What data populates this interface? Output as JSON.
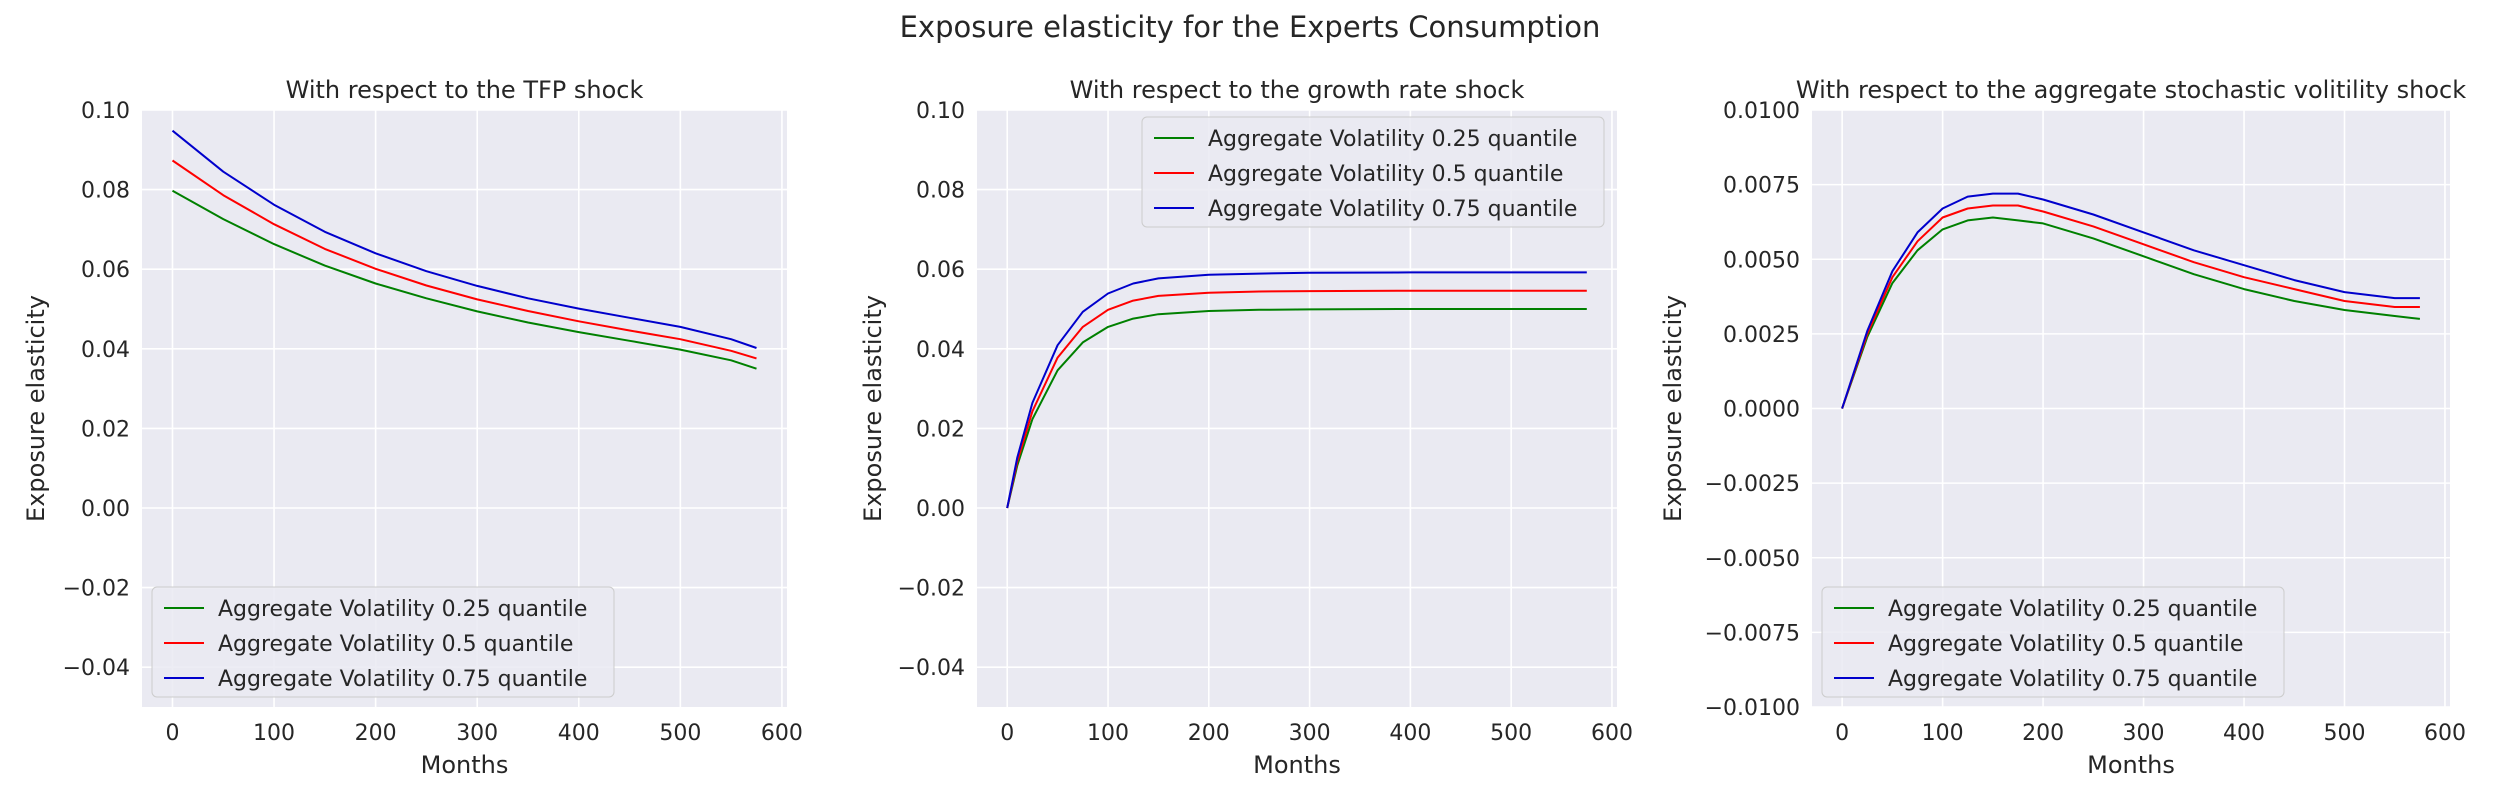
{
  "figure": {
    "title": "Exposure elasticity for the Experts Consumption"
  },
  "colors": {
    "q25": "#008000",
    "q50": "#ff0000",
    "q75": "#0000cc",
    "plot_background": "#eaeaf2",
    "grid": "#ffffff"
  },
  "chart_data": [
    {
      "type": "line",
      "title": "With respect to the TFP shock",
      "xlabel": "Months",
      "ylabel": "Exposure elasticity",
      "xlim": [
        -30,
        605
      ],
      "ylim": [
        -0.05,
        0.1
      ],
      "xticks": [
        0,
        100,
        200,
        300,
        400,
        500,
        600
      ],
      "yticks": [
        -0.04,
        -0.02,
        0.0,
        0.02,
        0.04,
        0.06,
        0.08,
        0.1
      ],
      "ytick_labels": [
        "−0.04",
        "−0.02",
        "0.00",
        "0.02",
        "0.04",
        "0.06",
        "0.08",
        "0.10"
      ],
      "grid": true,
      "legend": "lower-left",
      "x": [
        0,
        50,
        100,
        150,
        200,
        250,
        300,
        350,
        400,
        450,
        500,
        550,
        575
      ],
      "series": [
        {
          "name": "Aggregate Volatility 0.25 quantile",
          "color": "#008000",
          "values": [
            0.0797,
            0.0726,
            0.0663,
            0.0609,
            0.0564,
            0.0527,
            0.0494,
            0.0466,
            0.0442,
            0.042,
            0.0398,
            0.0371,
            0.035
          ]
        },
        {
          "name": "Aggregate Volatility 0.5 quantile",
          "color": "#ff0000",
          "values": [
            0.0873,
            0.0786,
            0.0713,
            0.0651,
            0.0601,
            0.0559,
            0.0524,
            0.0495,
            0.0469,
            0.0446,
            0.0424,
            0.0395,
            0.0376
          ]
        },
        {
          "name": "Aggregate Volatility 0.75 quantile",
          "color": "#0000cc",
          "values": [
            0.0948,
            0.0845,
            0.0762,
            0.0694,
            0.064,
            0.0595,
            0.0558,
            0.0527,
            0.0501,
            0.0478,
            0.0455,
            0.0424,
            0.0402
          ]
        }
      ]
    },
    {
      "type": "line",
      "title": "With respect to the growth rate shock",
      "xlabel": "Months",
      "ylabel": "Exposure elasticity",
      "xlim": [
        -30,
        605
      ],
      "ylim": [
        -0.05,
        0.1
      ],
      "xticks": [
        0,
        100,
        200,
        300,
        400,
        500,
        600
      ],
      "yticks": [
        -0.04,
        -0.02,
        0.0,
        0.02,
        0.04,
        0.06,
        0.08,
        0.1
      ],
      "ytick_labels": [
        "−0.04",
        "−0.02",
        "0.00",
        "0.02",
        "0.04",
        "0.06",
        "0.08",
        "0.10"
      ],
      "grid": true,
      "legend": "upper-right",
      "x": [
        0,
        10,
        25,
        50,
        75,
        100,
        125,
        150,
        200,
        250,
        300,
        400,
        500,
        575
      ],
      "series": [
        {
          "name": "Aggregate Volatility 0.25 quantile",
          "color": "#008000",
          "values": [
            0.0,
            0.0107,
            0.0223,
            0.0346,
            0.0416,
            0.0455,
            0.0476,
            0.0487,
            0.0495,
            0.0498,
            0.0499,
            0.05,
            0.05,
            0.05
          ]
        },
        {
          "name": "Aggregate Volatility 0.5 quantile",
          "color": "#ff0000",
          "values": [
            0.0,
            0.0117,
            0.0243,
            0.0378,
            0.0455,
            0.0498,
            0.0521,
            0.0533,
            0.0541,
            0.0544,
            0.0545,
            0.0546,
            0.0546,
            0.0546
          ]
        },
        {
          "name": "Aggregate Volatility 0.75 quantile",
          "color": "#0000cc",
          "values": [
            0.0,
            0.0127,
            0.0264,
            0.0409,
            0.0493,
            0.0539,
            0.0564,
            0.0577,
            0.0586,
            0.0589,
            0.0591,
            0.0592,
            0.0592,
            0.0592
          ]
        }
      ]
    },
    {
      "type": "line",
      "title": "With respect to the aggregate stochastic volitility shock",
      "xlabel": "Months",
      "ylabel": "Exposure elasticity",
      "xlim": [
        -30,
        605
      ],
      "ylim": [
        -0.01,
        0.01
      ],
      "xticks": [
        0,
        100,
        200,
        300,
        400,
        500,
        600
      ],
      "yticks": [
        -0.01,
        -0.0075,
        -0.005,
        -0.0025,
        0.0,
        0.0025,
        0.005,
        0.0075,
        0.01
      ],
      "ytick_labels": [
        "−0.0100",
        "−0.0075",
        "−0.0050",
        "−0.0025",
        "0.0000",
        "0.0025",
        "0.0050",
        "0.0075",
        "0.0100"
      ],
      "grid": true,
      "legend": "lower-left",
      "x": [
        0,
        25,
        50,
        75,
        100,
        125,
        150,
        175,
        200,
        250,
        300,
        350,
        400,
        450,
        500,
        550,
        575
      ],
      "series": [
        {
          "name": "Aggregate Volatility 0.25 quantile",
          "color": "#008000",
          "values": [
            0.0,
            0.0024,
            0.0042,
            0.0053,
            0.006,
            0.0063,
            0.0064,
            0.0063,
            0.0062,
            0.0057,
            0.0051,
            0.0045,
            0.004,
            0.0036,
            0.0033,
            0.0031,
            0.003
          ]
        },
        {
          "name": "Aggregate Volatility 0.5 quantile",
          "color": "#ff0000",
          "values": [
            0.0,
            0.0025,
            0.0044,
            0.0056,
            0.0064,
            0.0067,
            0.0068,
            0.0068,
            0.0066,
            0.0061,
            0.0055,
            0.0049,
            0.0044,
            0.004,
            0.0036,
            0.0034,
            0.0034
          ]
        },
        {
          "name": "Aggregate Volatility 0.75 quantile",
          "color": "#0000cc",
          "values": [
            0.0,
            0.0026,
            0.0046,
            0.0059,
            0.0067,
            0.0071,
            0.0072,
            0.0072,
            0.007,
            0.0065,
            0.0059,
            0.0053,
            0.0048,
            0.0043,
            0.0039,
            0.0037,
            0.0037
          ]
        }
      ]
    }
  ]
}
